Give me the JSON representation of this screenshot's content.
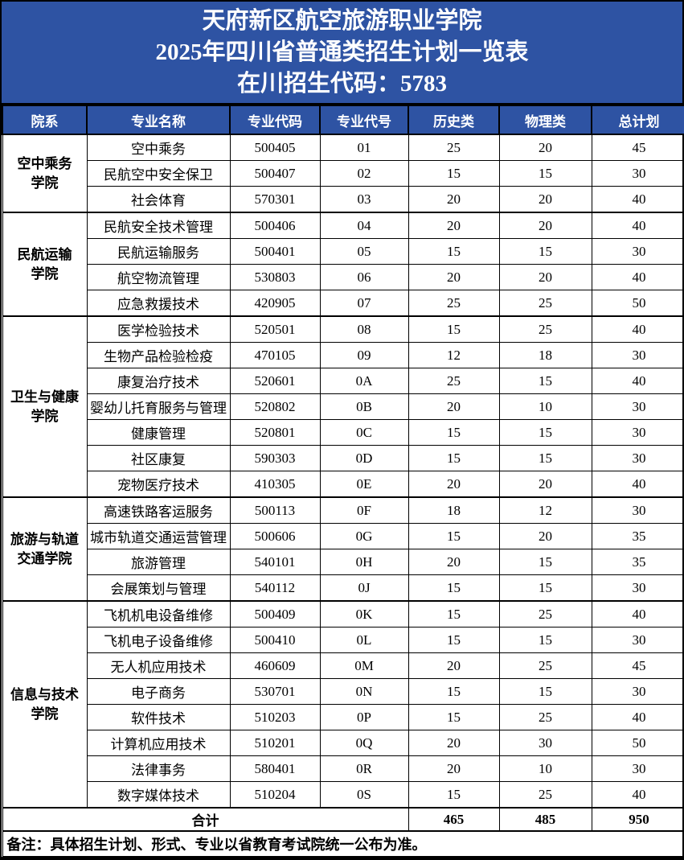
{
  "title": {
    "line1": "天府新区航空旅游职业学院",
    "line2": "2025年四川省普通类招生计划一览表",
    "line3": "在川招生代码：5783"
  },
  "colors": {
    "header_blue": "#2E53A3",
    "header_text": "#FFFFFF",
    "border_black": "#000000"
  },
  "columns": {
    "college": "院系",
    "major_name": "专业名称",
    "major_code": "专业代码",
    "major_no": "专业代号",
    "history": "历史类",
    "physics": "物理类",
    "total": "总计划"
  },
  "groups": [
    {
      "college": "空中乘务\n学院",
      "majors": [
        {
          "name": "空中乘务",
          "code": "500405",
          "no": "01",
          "history": 25,
          "physics": 20,
          "total": 45
        },
        {
          "name": "民航空中安全保卫",
          "code": "500407",
          "no": "02",
          "history": 15,
          "physics": 15,
          "total": 30
        },
        {
          "name": "社会体育",
          "code": "570301",
          "no": "03",
          "history": 20,
          "physics": 20,
          "total": 40
        }
      ]
    },
    {
      "college": "民航运输\n学院",
      "majors": [
        {
          "name": "民航安全技术管理",
          "code": "500406",
          "no": "04",
          "history": 20,
          "physics": 20,
          "total": 40
        },
        {
          "name": "民航运输服务",
          "code": "500401",
          "no": "05",
          "history": 15,
          "physics": 15,
          "total": 30
        },
        {
          "name": "航空物流管理",
          "code": "530803",
          "no": "06",
          "history": 20,
          "physics": 20,
          "total": 40
        },
        {
          "name": "应急救援技术",
          "code": "420905",
          "no": "07",
          "history": 25,
          "physics": 25,
          "total": 50
        }
      ]
    },
    {
      "college": "卫生与健康\n学院",
      "majors": [
        {
          "name": "医学检验技术",
          "code": "520501",
          "no": "08",
          "history": 15,
          "physics": 25,
          "total": 40
        },
        {
          "name": "生物产品检验检疫",
          "code": "470105",
          "no": "09",
          "history": 12,
          "physics": 18,
          "total": 30
        },
        {
          "name": "康复治疗技术",
          "code": "520601",
          "no": "0A",
          "history": 25,
          "physics": 15,
          "total": 40
        },
        {
          "name": "婴幼儿托育服务与管理",
          "code": "520802",
          "no": "0B",
          "history": 20,
          "physics": 10,
          "total": 30
        },
        {
          "name": "健康管理",
          "code": "520801",
          "no": "0C",
          "history": 15,
          "physics": 15,
          "total": 30
        },
        {
          "name": "社区康复",
          "code": "590303",
          "no": "0D",
          "history": 15,
          "physics": 15,
          "total": 30
        },
        {
          "name": "宠物医疗技术",
          "code": "410305",
          "no": "0E",
          "history": 20,
          "physics": 20,
          "total": 40
        }
      ]
    },
    {
      "college": "旅游与轨道\n交通学院",
      "majors": [
        {
          "name": "高速铁路客运服务",
          "code": "500113",
          "no": "0F",
          "history": 18,
          "physics": 12,
          "total": 30
        },
        {
          "name": "城市轨道交通运营管理",
          "code": "500606",
          "no": "0G",
          "history": 15,
          "physics": 20,
          "total": 35
        },
        {
          "name": "旅游管理",
          "code": "540101",
          "no": "0H",
          "history": 20,
          "physics": 15,
          "total": 35
        },
        {
          "name": "会展策划与管理",
          "code": "540112",
          "no": "0J",
          "history": 15,
          "physics": 15,
          "total": 30
        }
      ]
    },
    {
      "college": "信息与技术\n学院",
      "majors": [
        {
          "name": "飞机机电设备维修",
          "code": "500409",
          "no": "0K",
          "history": 15,
          "physics": 25,
          "total": 40
        },
        {
          "name": "飞机电子设备维修",
          "code": "500410",
          "no": "0L",
          "history": 15,
          "physics": 15,
          "total": 30
        },
        {
          "name": "无人机应用技术",
          "code": "460609",
          "no": "0M",
          "history": 20,
          "physics": 25,
          "total": 45
        },
        {
          "name": "电子商务",
          "code": "530701",
          "no": "0N",
          "history": 15,
          "physics": 15,
          "total": 30
        },
        {
          "name": "软件技术",
          "code": "510203",
          "no": "0P",
          "history": 15,
          "physics": 25,
          "total": 40
        },
        {
          "name": "计算机应用技术",
          "code": "510201",
          "no": "0Q",
          "history": 20,
          "physics": 30,
          "total": 50
        },
        {
          "name": "法律事务",
          "code": "580401",
          "no": "0R",
          "history": 20,
          "physics": 10,
          "total": 30
        },
        {
          "name": "数字媒体技术",
          "code": "510204",
          "no": "0S",
          "history": 15,
          "physics": 25,
          "total": 40
        }
      ]
    }
  ],
  "summary": {
    "label": "合计",
    "history": 465,
    "physics": 485,
    "total": 950
  },
  "note": "备注：具体招生计划、形式、专业以省教育考试院统一公布为准。"
}
